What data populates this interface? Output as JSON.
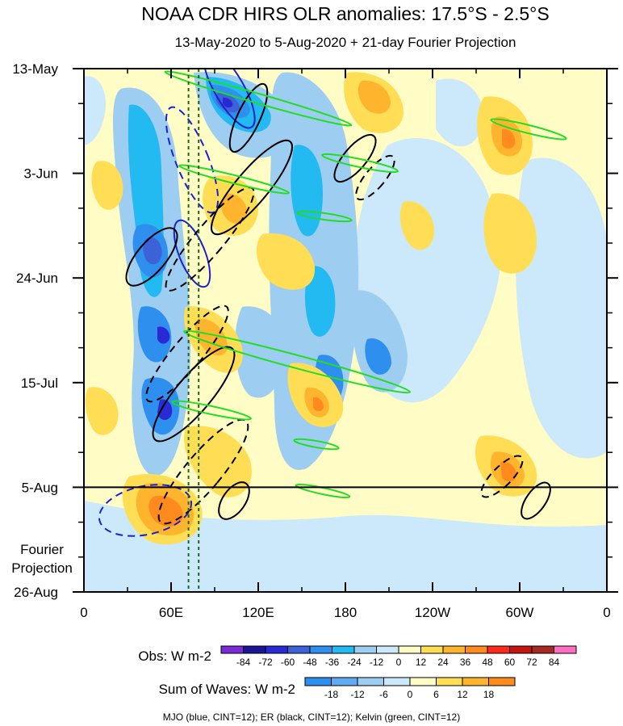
{
  "chart_data": {
    "type": "heatmap",
    "title": "NOAA CDR HIRS OLR anomalies: 17.5°S - 2.5°S",
    "subtitle": "13-May-2020 to 5-Aug-2020 + 21-day Fourier Projection",
    "x_ticks": [
      "0",
      "60E",
      "120E",
      "180",
      "120W",
      "60W",
      "0"
    ],
    "x_values_deg": [
      0,
      60,
      120,
      180,
      240,
      300,
      360
    ],
    "y_ticks": [
      "13-May",
      "3-Jun",
      "24-Jun",
      "15-Jul",
      "5-Aug",
      "26-Aug"
    ],
    "y_range": [
      "13-May-2020",
      "26-Aug-2020"
    ],
    "obs_end": "5-Aug",
    "projection_label_1": "Fourier",
    "projection_label_2": "Projection",
    "obs_colorbar": {
      "label": "Obs: W m-2",
      "levels": [
        "-84",
        "-72",
        "-60",
        "-48",
        "-36",
        "-24",
        "-12",
        "0",
        "12",
        "24",
        "36",
        "48",
        "60",
        "72",
        "84"
      ],
      "colors": [
        "#7a2bd6",
        "#1a1496",
        "#2a2ad4",
        "#3c62d8",
        "#2e8fef",
        "#22baf0",
        "#9ecdf2",
        "#cbe9fa",
        "#fffcc6",
        "#ffdd55",
        "#ffb42e",
        "#ff8a1e",
        "#ff2a1a",
        "#c51410",
        "#a52a22",
        "#ff6ec4"
      ]
    },
    "waves_colorbar": {
      "label": "Sum of Waves: W m-2",
      "levels": [
        "-18",
        "-12",
        "-6",
        "0",
        "6",
        "12",
        "18"
      ],
      "colors": [
        "#2e8fef",
        "#62aaf2",
        "#9ecdf2",
        "#cbe9fa",
        "#fffcc6",
        "#ffdd55",
        "#ffb42e",
        "#ff8a1e"
      ]
    },
    "footnote": "MJO (blue, CINT=12); ER (black, CINT=12); Kelvin (green, CINT=12)",
    "contours": [
      {
        "name": "MJO",
        "color": "#1a22d0"
      },
      {
        "name": "ER",
        "color": "#000000"
      },
      {
        "name": "Kelvin",
        "color": "#22dd22"
      }
    ],
    "vertical_lines_deg": [
      72,
      79
    ]
  }
}
